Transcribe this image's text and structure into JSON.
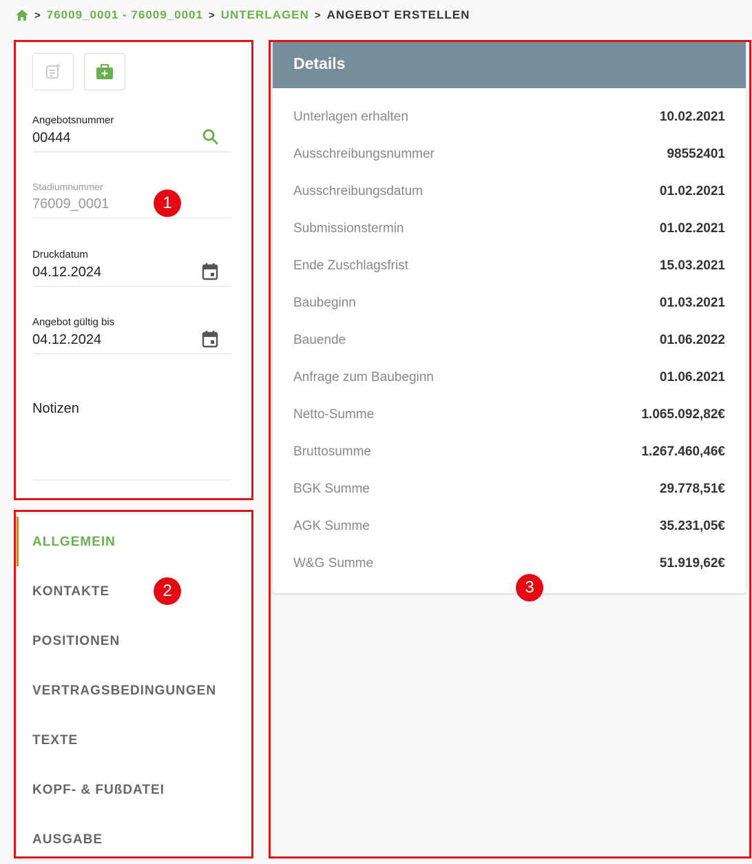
{
  "breadcrumb": {
    "items": [
      "76009_0001 - 76009_0001",
      "UNTERLAGEN",
      "ANGEBOT ERSTELLEN"
    ]
  },
  "form": {
    "angebotsnummer": {
      "label": "Angebotsnummer",
      "value": "00444"
    },
    "stadiumnummer": {
      "label": "Stadiumnummer",
      "value": "76009_0001"
    },
    "druckdatum": {
      "label": "Druckdatum",
      "value": "04.12.2024"
    },
    "gueltig": {
      "label": "Angebot gültig bis",
      "value": "04.12.2024"
    },
    "notizen": {
      "label": "Notizen"
    }
  },
  "nav": {
    "items": [
      "ALLGEMEIN",
      "KONTAKTE",
      "POSITIONEN",
      "VERTRAGSBEDINGUNGEN",
      "TEXTE",
      "KOPF- & FUßDATEI",
      "AUSGABE"
    ],
    "active": "ALLGEMEIN"
  },
  "details": {
    "title": "Details",
    "rows": [
      {
        "k": "Unterlagen erhalten",
        "v": "10.02.2021"
      },
      {
        "k": "Ausschreibungsnummer",
        "v": "98552401"
      },
      {
        "k": "Ausschreibungsdatum",
        "v": "01.02.2021"
      },
      {
        "k": "Submissionstermin",
        "v": "01.02.2021"
      },
      {
        "k": "Ende Zuschlagsfrist",
        "v": "15.03.2021"
      },
      {
        "k": "Baubeginn",
        "v": "01.03.2021"
      },
      {
        "k": "Bauende",
        "v": "01.06.2022"
      },
      {
        "k": "Anfrage zum Baubeginn",
        "v": "01.06.2021"
      },
      {
        "k": "Netto-Summe",
        "v": "1.065.092,82€"
      },
      {
        "k": "Bruttosumme",
        "v": "1.267.460,46€"
      },
      {
        "k": "BGK Summe",
        "v": "29.778,51€"
      },
      {
        "k": "AGK Summe",
        "v": "35.231,05€"
      },
      {
        "k": "W&G Summe",
        "v": "51.919,62€"
      }
    ]
  },
  "annotations": [
    "1",
    "2",
    "3"
  ],
  "colors": {
    "accent": "#6ab04c",
    "header": "#778d99",
    "annotation": "#d7191c"
  }
}
